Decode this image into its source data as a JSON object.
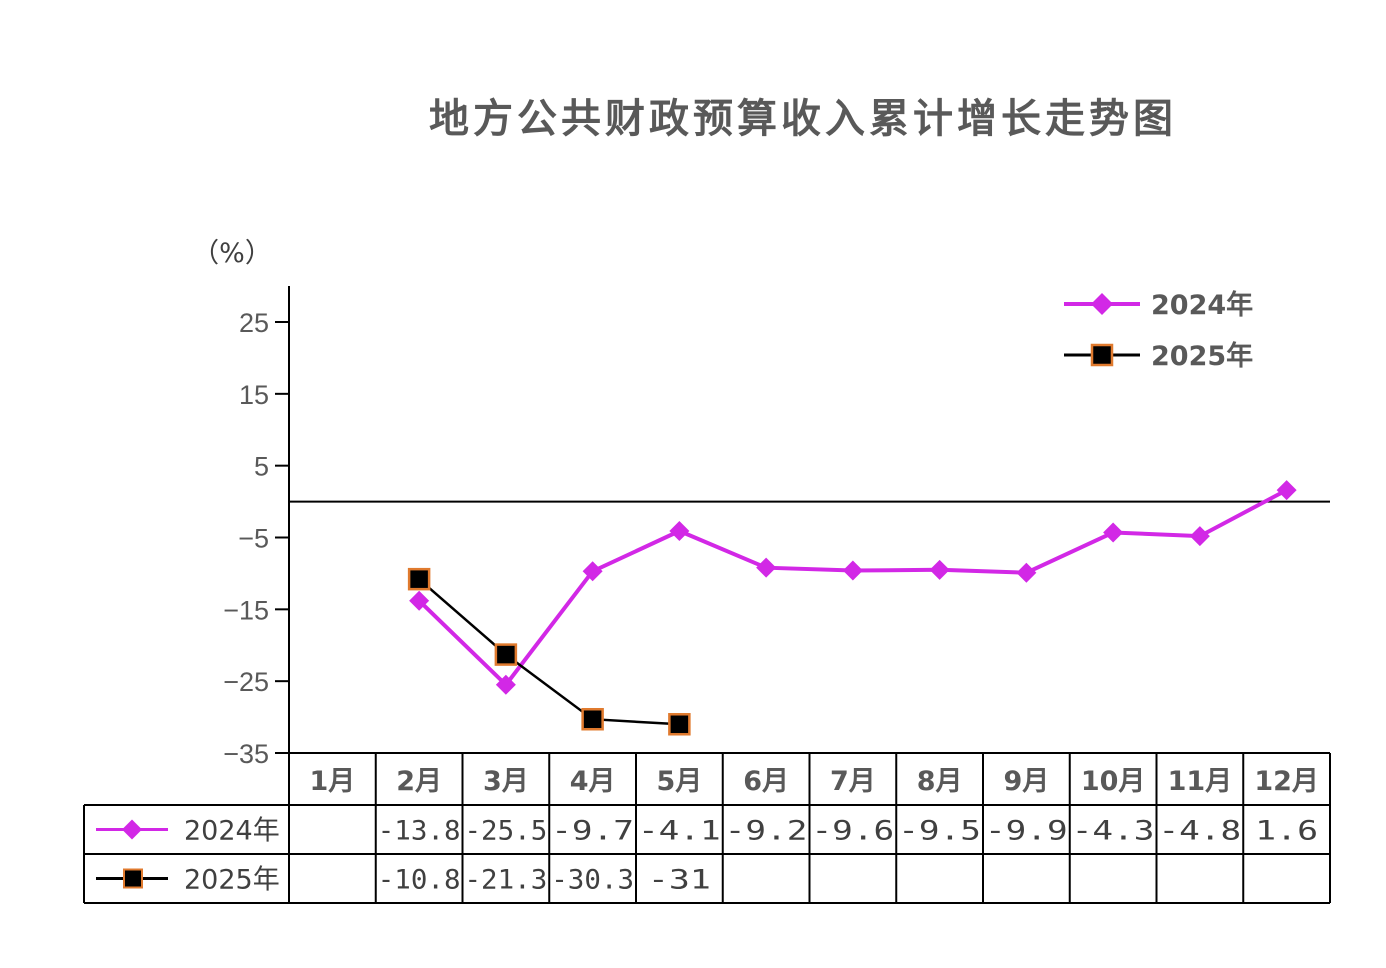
{
  "title": "地方公共财政预算收入累计增长走势图",
  "unit_label": "（%）",
  "colors": {
    "s2024": "#d228e6",
    "s2025": "#000000",
    "marker2025_stroke": "#e07a2e",
    "axis": "#000000",
    "text": "#595959"
  },
  "chart_data": {
    "type": "line",
    "title": "地方公共财政预算收入累计增长走势图",
    "ylabel": "（%）",
    "xlabel": "",
    "categories": [
      "1月",
      "2月",
      "3月",
      "4月",
      "5月",
      "6月",
      "7月",
      "8月",
      "9月",
      "10月",
      "11月",
      "12月"
    ],
    "yticks": [
      25,
      15,
      5,
      -5,
      -15,
      -25,
      -35
    ],
    "ylim": [
      -35,
      30
    ],
    "legend_position": "top-right",
    "grid": false,
    "series": [
      {
        "name": "2024年",
        "marker": "diamond",
        "values": [
          null,
          -13.8,
          -25.5,
          -9.7,
          -4.1,
          -9.2,
          -9.6,
          -9.5,
          -9.9,
          -4.3,
          -4.8,
          1.6
        ]
      },
      {
        "name": "2025年",
        "marker": "square",
        "values": [
          null,
          -10.8,
          -21.3,
          -30.3,
          -31,
          null,
          null,
          null,
          null,
          null,
          null,
          null
        ]
      }
    ],
    "data_table": {
      "rows": [
        {
          "label": "2024年",
          "cells": [
            "",
            "-13.8",
            "-25.5",
            "-9.7",
            "-4.1",
            "-9.2",
            "-9.6",
            "-9.5",
            "-9.9",
            "-4.3",
            "-4.8",
            "1.6"
          ]
        },
        {
          "label": "2025年",
          "cells": [
            "",
            "-10.8",
            "-21.3",
            "-30.3",
            "-31",
            "",
            "",
            "",
            "",
            "",
            "",
            ""
          ]
        }
      ]
    }
  }
}
